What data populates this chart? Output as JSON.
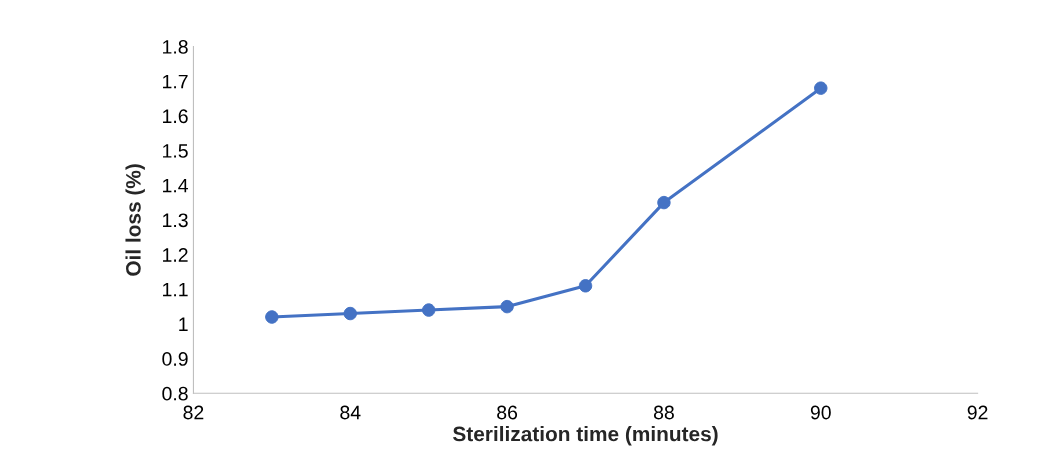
{
  "chart_data": {
    "type": "line",
    "xlabel": "Sterilization time (minutes)",
    "ylabel": "Oil loss (%)",
    "x": [
      83,
      84,
      85,
      86,
      87,
      88,
      90
    ],
    "series": [
      {
        "color": "#4472c4",
        "values": [
          1.02,
          1.03,
          1.04,
          1.05,
          1.11,
          1.35,
          1.68
        ]
      }
    ],
    "xlim": [
      82,
      92
    ],
    "xticks": [
      82,
      84,
      86,
      88,
      90,
      92
    ],
    "ylim": [
      0.8,
      1.8
    ],
    "yticks": [
      0.8,
      0.9,
      1,
      1.1,
      1.2,
      1.3,
      1.4,
      1.5,
      1.6,
      1.7,
      1.8
    ],
    "marker": "circle",
    "line_style": "solid",
    "grid": false,
    "legend": false
  }
}
